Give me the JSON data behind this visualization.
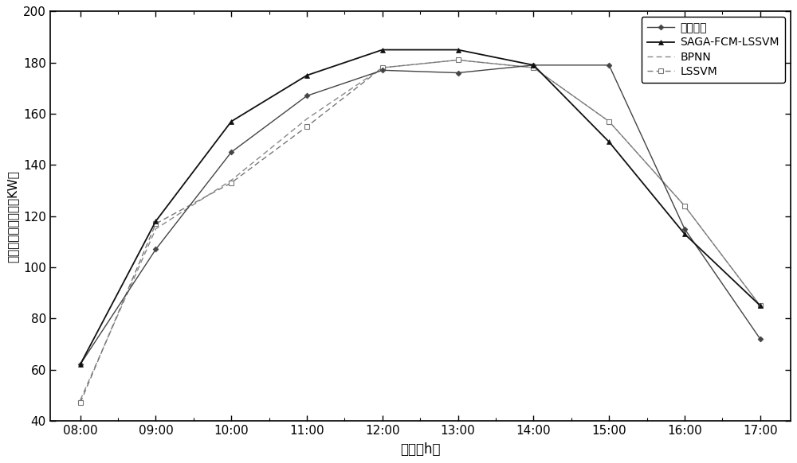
{
  "x_labels": [
    "08:00",
    "09:00",
    "10:00",
    "11:00",
    "12:00",
    "13:00",
    "14:00",
    "15:00",
    "16:00",
    "17:00"
  ],
  "x_values": [
    0,
    1,
    2,
    3,
    4,
    5,
    6,
    7,
    8,
    9
  ],
  "actual_power": [
    62,
    107,
    145,
    167,
    177,
    176,
    179,
    179,
    115,
    72
  ],
  "saga_fcm_lssvm": [
    62,
    118,
    157,
    175,
    185,
    185,
    179,
    149,
    113,
    85
  ],
  "bpnn": [
    48,
    115,
    134,
    158,
    178,
    181,
    178,
    157,
    124,
    85
  ],
  "lssvm": [
    47,
    117,
    133,
    155,
    178,
    181,
    178,
    157,
    124,
    85
  ],
  "ylim": [
    40,
    200
  ],
  "yticks": [
    40,
    60,
    80,
    100,
    120,
    140,
    160,
    180,
    200
  ],
  "ylabel": "光伏电站输出功率（KW）",
  "xlabel": "时刻（h）",
  "legend_actual": "实际功率",
  "legend_saga": "SAGA-FCM-LSSVM",
  "legend_bpnn": "BPNN",
  "legend_lssvm": "LSSVM",
  "color_actual": "#444444",
  "color_saga": "#111111",
  "color_bpnn": "#888888",
  "color_lssvm": "#777777",
  "background_color": "#ffffff"
}
